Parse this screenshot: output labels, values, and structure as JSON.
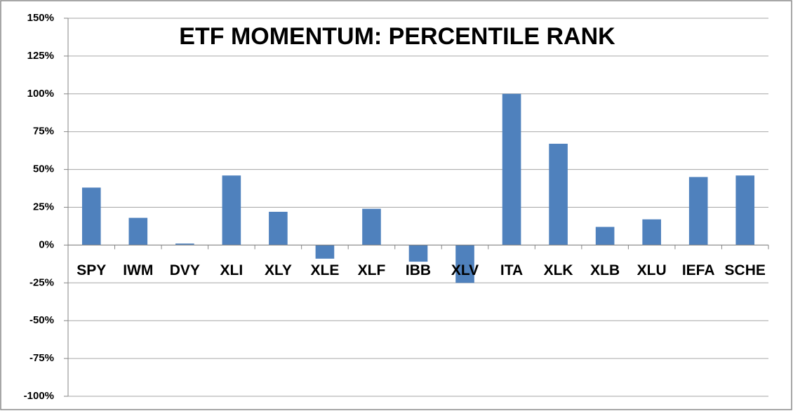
{
  "chart_data": {
    "type": "bar",
    "title": "ETF MOMENTUM: PERCENTILE RANK",
    "categories": [
      "SPY",
      "IWM",
      "DVY",
      "XLI",
      "XLY",
      "XLE",
      "XLF",
      "IBB",
      "XLV",
      "ITA",
      "XLK",
      "XLB",
      "XLU",
      "IEFA",
      "SCHE"
    ],
    "values": [
      38,
      18,
      1,
      46,
      22,
      -9,
      24,
      -11,
      -25,
      100,
      67,
      12,
      17,
      45,
      46
    ],
    "color": "#4f81bd",
    "ylim": [
      -100,
      150
    ],
    "yticks": [
      {
        "value": -100,
        "label": "-100%"
      },
      {
        "value": -75,
        "label": "-75%"
      },
      {
        "value": -50,
        "label": "-50%"
      },
      {
        "value": -25,
        "label": "-25%"
      },
      {
        "value": 0,
        "label": "0%"
      },
      {
        "value": 25,
        "label": "25%"
      },
      {
        "value": 50,
        "label": "50%"
      },
      {
        "value": 75,
        "label": "75%"
      },
      {
        "value": 100,
        "label": "100%"
      },
      {
        "value": 125,
        "label": "125%"
      },
      {
        "value": 150,
        "label": "150%"
      }
    ],
    "grid": true
  }
}
